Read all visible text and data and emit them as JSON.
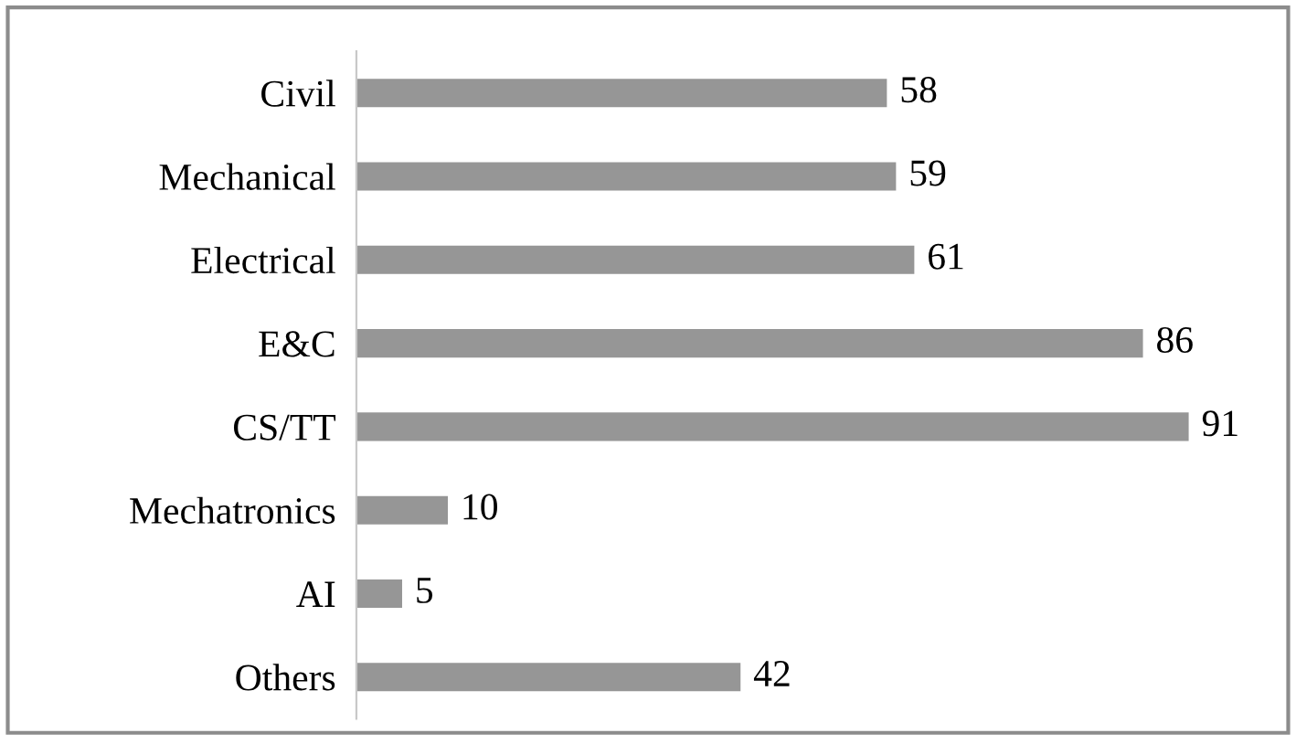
{
  "chart_data": {
    "type": "bar",
    "orientation": "horizontal",
    "categories": [
      "Civil",
      "Mechanical",
      "Electrical",
      "E&C",
      "CS/TT",
      "Mechatronics",
      "AI",
      "Others"
    ],
    "values": [
      58,
      59,
      61,
      86,
      91,
      10,
      5,
      42
    ],
    "color": "#969696",
    "data_labels": true,
    "grid": false,
    "legend": false
  }
}
